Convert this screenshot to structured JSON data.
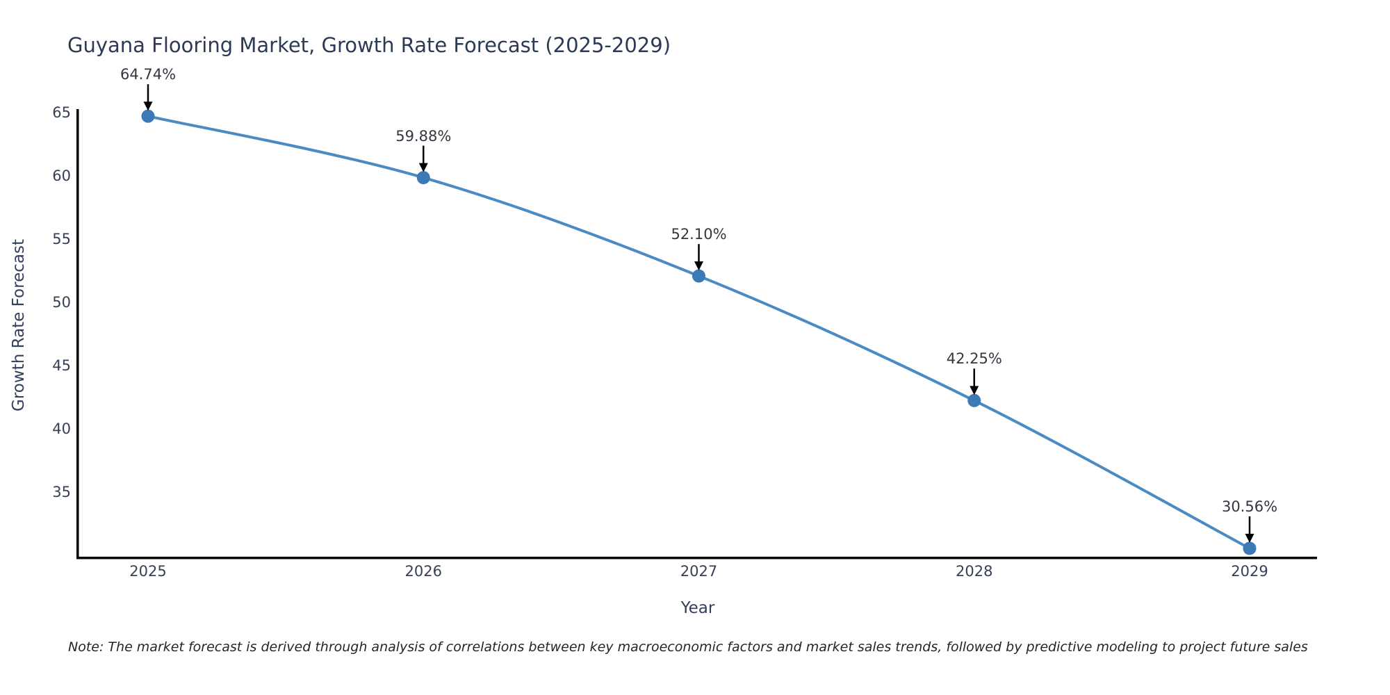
{
  "title": "Guyana Flooring Market, Growth Rate Forecast (2025-2029)",
  "note": "Note: The market forecast is derived through analysis of correlations between key macroeconomic factors and market sales trends, followed by predictive modeling to project future sales",
  "chart_data": {
    "type": "line",
    "title": "Guyana Flooring Market, Growth Rate Forecast (2025-2029)",
    "categories": [
      "2025",
      "2026",
      "2027",
      "2028",
      "2029"
    ],
    "values": [
      64.74,
      59.88,
      52.1,
      42.25,
      30.56
    ],
    "point_labels": [
      "64.74%",
      "59.88%",
      "52.10%",
      "42.25%",
      "30.56%"
    ],
    "xlabel": "Year",
    "ylabel": "Growth Rate Forecast",
    "yticks": [
      65,
      60,
      55,
      50,
      45,
      40,
      35
    ],
    "ylim": [
      29.9,
      65.3
    ],
    "grid": false,
    "legend": "none",
    "annotation_style": "value label above point with downward arrow",
    "colors": {
      "line": "#4a8bc4",
      "marker": "#3c7ab5",
      "arrow": "#000000",
      "axis": "#000000",
      "title_text": "#2d3a55",
      "tick_text": "#363f55",
      "annotation_text": "#333740",
      "note_text": "#22252b"
    }
  }
}
